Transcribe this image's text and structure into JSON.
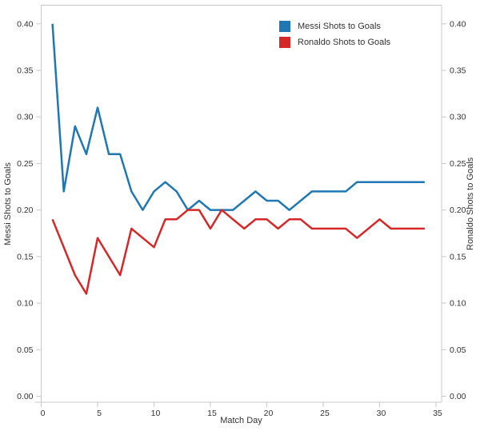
{
  "chart_data": {
    "type": "line",
    "title": "",
    "xlabel": "Match Day",
    "ylabel_left": "Messi Shots to Goals",
    "ylabel_right": "Ronaldo Shots to Goals",
    "x": [
      1,
      2,
      3,
      4,
      5,
      6,
      7,
      8,
      9,
      10,
      11,
      12,
      13,
      14,
      15,
      16,
      17,
      18,
      19,
      20,
      21,
      22,
      23,
      24,
      25,
      26,
      27,
      28,
      29,
      30,
      31,
      32,
      33,
      34
    ],
    "series": [
      {
        "name": "Messi Shots to Goals",
        "color": "#1f77b4",
        "axis": "left",
        "values": [
          0.4,
          0.22,
          0.29,
          0.26,
          0.31,
          0.26,
          0.26,
          0.22,
          0.2,
          0.22,
          0.23,
          0.22,
          0.2,
          0.21,
          0.2,
          0.2,
          0.2,
          0.21,
          0.22,
          0.21,
          0.21,
          0.2,
          0.21,
          0.22,
          0.22,
          0.22,
          0.22,
          0.23,
          0.23,
          0.23,
          0.23,
          0.23,
          0.23,
          0.23
        ]
      },
      {
        "name": "Ronaldo Shots to Goals",
        "color": "#d62728",
        "axis": "right",
        "values": [
          0.19,
          0.16,
          0.13,
          0.11,
          0.17,
          0.15,
          0.13,
          0.18,
          0.17,
          0.16,
          0.19,
          0.19,
          0.2,
          0.2,
          0.18,
          0.2,
          0.19,
          0.18,
          0.19,
          0.19,
          0.18,
          0.19,
          0.19,
          0.18,
          0.18,
          0.18,
          0.18,
          0.17,
          0.18,
          0.19,
          0.18,
          0.18,
          0.18,
          0.18
        ]
      }
    ],
    "xlim": [
      0,
      35.5
    ],
    "ylim": [
      -0.006,
      0.42
    ],
    "x_ticks": [
      0,
      5,
      10,
      15,
      20,
      25,
      30,
      35
    ],
    "y_ticks": [
      0.0,
      0.05,
      0.1,
      0.15,
      0.2,
      0.25,
      0.3,
      0.35,
      0.4
    ],
    "y_tick_format_decimals": 2,
    "grid": false,
    "legend_position": "top-center",
    "axis_color": "#c9c9c9",
    "tick_label_color": "#333333",
    "background_color": "#ffffff",
    "line_width": 2.5
  }
}
